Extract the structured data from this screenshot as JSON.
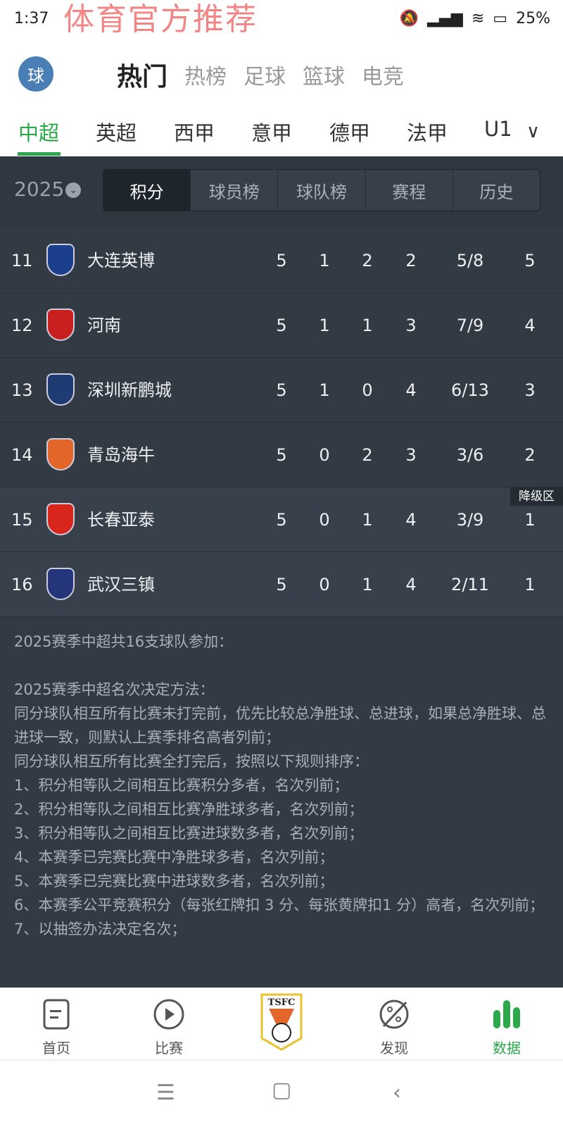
{
  "status": {
    "time": "1:37",
    "battery": "25%",
    "watermark": "体育官方推荐"
  },
  "header": {
    "avatar": "球",
    "tabs": [
      "热门",
      "热榜",
      "足球",
      "篮球",
      "电竞"
    ],
    "active": 0
  },
  "leagues": {
    "items": [
      "中超",
      "英超",
      "西甲",
      "意甲",
      "德甲",
      "法甲",
      "U1"
    ],
    "active": 0
  },
  "filter": {
    "year": "2025",
    "tabs": [
      "积分",
      "球员榜",
      "球队榜",
      "赛程",
      "历史"
    ],
    "active": 0
  },
  "table": {
    "rows": [
      {
        "rank": "11",
        "team": "大连英博",
        "p": "5",
        "w": "1",
        "d": "2",
        "l": "2",
        "goals": "5/8",
        "pts": "5",
        "logo_color": "#1c3f8c"
      },
      {
        "rank": "12",
        "team": "河南",
        "p": "5",
        "w": "1",
        "d": "1",
        "l": "3",
        "goals": "7/9",
        "pts": "4",
        "logo_color": "#c8201e"
      },
      {
        "rank": "13",
        "team": "深圳新鹏城",
        "p": "5",
        "w": "1",
        "d": "0",
        "l": "4",
        "goals": "6/13",
        "pts": "3",
        "logo_color": "#1f3b73"
      },
      {
        "rank": "14",
        "team": "青岛海牛",
        "p": "5",
        "w": "0",
        "d": "2",
        "l": "3",
        "goals": "3/6",
        "pts": "2",
        "logo_color": "#e2662a"
      },
      {
        "rank": "15",
        "team": "长春亚泰",
        "p": "5",
        "w": "0",
        "d": "1",
        "l": "4",
        "goals": "3/9",
        "pts": "1",
        "logo_color": "#d8261d",
        "badge": "降级区"
      },
      {
        "rank": "16",
        "team": "武汉三镇",
        "p": "5",
        "w": "0",
        "d": "1",
        "l": "4",
        "goals": "2/11",
        "pts": "1",
        "logo_color": "#24357a"
      }
    ]
  },
  "notes": "2025赛季中超共16支球队参加：\n\n2025赛季中超名次决定方法：\n同分球队相互所有比赛未打完前，优先比较总净胜球、总进球，如果总净胜球、总进球一致，则默认上赛季排名高者列前；\n同分球队相互所有比赛全打完后，按照以下规则排序：\n1、积分相等队之间相互比赛积分多者，名次列前；\n2、积分相等队之间相互比赛净胜球多者，名次列前；\n3、积分相等队之间相互比赛进球数多者，名次列前；\n4、本赛季已完赛比赛中净胜球多者，名次列前；\n5、本赛季已完赛比赛中进球数多者，名次列前；\n6、本赛季公平竞赛积分（每张红牌扣 3 分、每张黄牌扣1 分）高者，名次列前；\n7、以抽签办法决定名次；",
  "bottom_nav": {
    "items": [
      "首页",
      "比赛",
      "",
      "发现",
      "数据"
    ],
    "center_logo": "TSFC",
    "active": 4,
    "accent": "#2aa84a"
  }
}
